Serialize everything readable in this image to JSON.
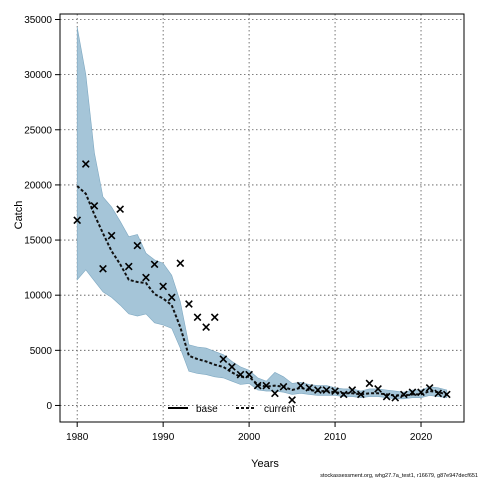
{
  "chart_data": {
    "type": "line",
    "xlabel": "Years",
    "ylabel": "Catch",
    "xlim": [
      1978,
      2025
    ],
    "ylim": [
      -1500,
      35500
    ],
    "xticks": [
      1980,
      1990,
      2000,
      2010,
      2020
    ],
    "yticks": [
      0,
      5000,
      10000,
      15000,
      20000,
      25000,
      30000,
      35000
    ],
    "grid": true,
    "legend": {
      "position": "bottom-center",
      "entries": [
        "base",
        "current"
      ]
    },
    "footer": "stockassessment.org, whg27.7a_test1, r16679, g87e947decf651",
    "colors": {
      "band": "#a5c5d8",
      "band_edge": "#7ea8c1",
      "line": "#111111",
      "base_line": "#000000"
    },
    "series": [
      {
        "name": "current",
        "style": "dashed",
        "x": [
          1980,
          1981,
          1982,
          1983,
          1984,
          1985,
          1986,
          1987,
          1988,
          1989,
          1990,
          1991,
          1992,
          1993,
          1994,
          1995,
          1996,
          1997,
          1998,
          1999,
          2000,
          2001,
          2002,
          2003,
          2004,
          2005,
          2006,
          2007,
          2008,
          2009,
          2010,
          2011,
          2012,
          2013,
          2014,
          2015,
          2016,
          2017,
          2018,
          2019,
          2020,
          2021,
          2022,
          2023
        ],
        "y": [
          19900,
          19200,
          17300,
          15600,
          14000,
          12800,
          11400,
          11200,
          11100,
          10100,
          9700,
          9100,
          7100,
          4500,
          4200,
          4000,
          3700,
          3500,
          3000,
          2600,
          2600,
          1900,
          1700,
          1800,
          1700,
          1400,
          1600,
          1400,
          1300,
          1300,
          1200,
          1100,
          1100,
          1000,
          1100,
          1100,
          1000,
          900,
          900,
          1000,
          1000,
          1300,
          1200,
          1000
        ],
        "lower": [
          11400,
          12300,
          11300,
          10300,
          9800,
          9100,
          8300,
          8100,
          8300,
          7500,
          7300,
          7000,
          5200,
          3100,
          2900,
          2800,
          2600,
          2500,
          2200,
          1900,
          2000,
          1400,
          1300,
          1300,
          1200,
          1000,
          1100,
          1000,
          900,
          900,
          900,
          800,
          800,
          700,
          800,
          800,
          700,
          600,
          600,
          700,
          700,
          900,
          800,
          700
        ],
        "upper": [
          34300,
          30000,
          22900,
          18900,
          18000,
          16700,
          15300,
          15500,
          13800,
          13200,
          12900,
          11800,
          9400,
          5500,
          5300,
          5200,
          4900,
          4600,
          4000,
          3500,
          3200,
          2500,
          2200,
          3000,
          2600,
          2000,
          2100,
          1900,
          1800,
          1800,
          1600,
          1500,
          1500,
          1300,
          1500,
          1500,
          1400,
          1300,
          1200,
          1400,
          1400,
          1700,
          1600,
          1400
        ]
      }
    ],
    "observations": {
      "marker": "x",
      "x": [
        1980,
        1981,
        1982,
        1983,
        1984,
        1985,
        1986,
        1987,
        1988,
        1989,
        1990,
        1991,
        1992,
        1993,
        1994,
        1995,
        1996,
        1997,
        1998,
        1999,
        2000,
        2001,
        2002,
        2003,
        2004,
        2005,
        2006,
        2007,
        2008,
        2009,
        2010,
        2011,
        2012,
        2013,
        2014,
        2015,
        2016,
        2017,
        2018,
        2019,
        2020,
        2021,
        2022,
        2023
      ],
      "y": [
        16800,
        21900,
        18100,
        12400,
        15400,
        17800,
        12600,
        14500,
        11600,
        12800,
        10800,
        9800,
        12900,
        9200,
        8000,
        7100,
        8000,
        4200,
        3500,
        2800,
        2800,
        1800,
        1800,
        1100,
        1700,
        500,
        1800,
        1600,
        1400,
        1400,
        1300,
        1000,
        1400,
        1000,
        2000,
        1500,
        800,
        700,
        1000,
        1200,
        1200,
        1600,
        1100,
        1000
      ]
    }
  }
}
